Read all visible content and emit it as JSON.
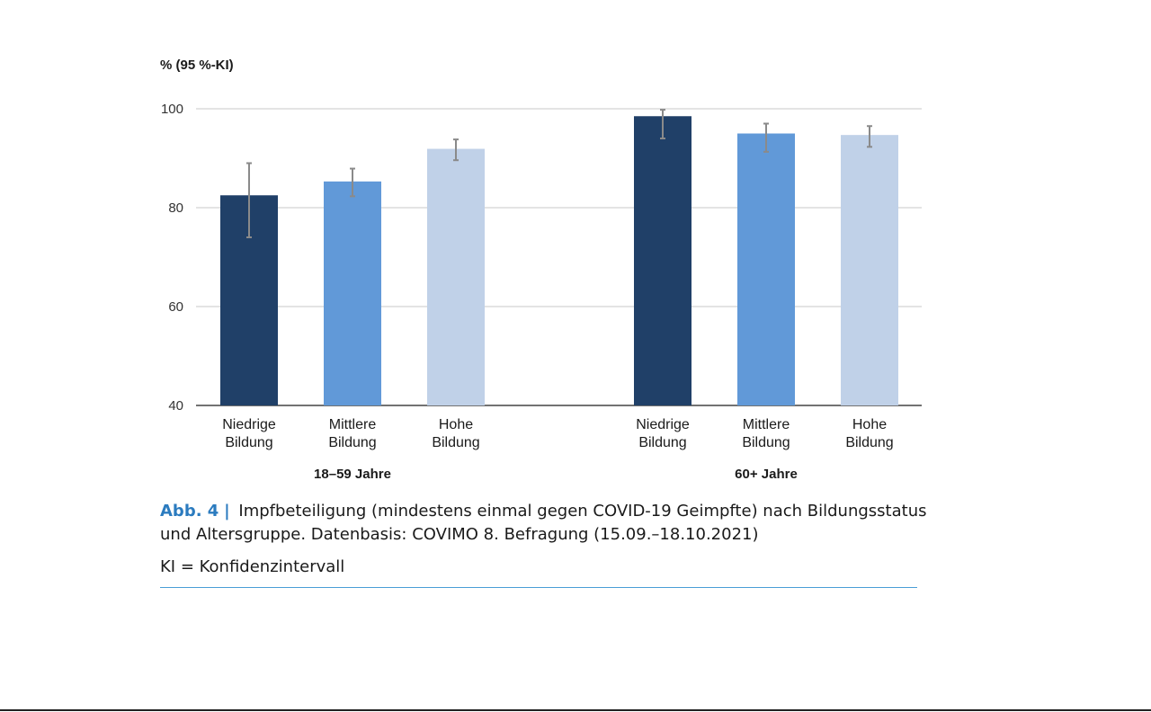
{
  "chart_data": {
    "type": "bar",
    "ylabel": "% (95 %-KI)",
    "ylim": [
      40,
      100
    ],
    "yticks": [
      40,
      60,
      80,
      100
    ],
    "grid": true,
    "groups": [
      {
        "name": "18–59 Jahre",
        "bars": [
          {
            "label": [
              "Niedrige",
              "Bildung"
            ],
            "value": 82.5,
            "ci_low": 74.0,
            "ci_high": 89.0,
            "color": "#204068"
          },
          {
            "label": [
              "Mittlere",
              "Bildung"
            ],
            "value": 85.3,
            "ci_low": 82.3,
            "ci_high": 87.9,
            "color": "#6199d8"
          },
          {
            "label": [
              "Hohe",
              "Bildung"
            ],
            "value": 91.9,
            "ci_low": 89.6,
            "ci_high": 93.8,
            "color": "#c0d1e8"
          }
        ]
      },
      {
        "name": "60+ Jahre",
        "bars": [
          {
            "label": [
              "Niedrige",
              "Bildung"
            ],
            "value": 98.5,
            "ci_low": 94.0,
            "ci_high": 99.8,
            "color": "#204068"
          },
          {
            "label": [
              "Mittlere",
              "Bildung"
            ],
            "value": 95.0,
            "ci_low": 91.3,
            "ci_high": 97.0,
            "color": "#6199d8"
          },
          {
            "label": [
              "Hohe",
              "Bildung"
            ],
            "value": 94.7,
            "ci_low": 92.3,
            "ci_high": 96.5,
            "color": "#c0d1e8"
          }
        ]
      }
    ]
  },
  "caption": {
    "fig_label": "Abb. 4",
    "separator": "|",
    "text": "Impfbeteiligung (mindestens einmal gegen COVID-19 Geimpfte) nach Bildungsstatus und Altersgruppe. Datenbasis: COVIMO 8. Befragung (15.09.–18.10.2021)"
  },
  "note": "KI = Konfidenzintervall",
  "colors": {
    "grid": "#c8c8c8",
    "axis": "#444444",
    "error_bar": "#8a8a8a",
    "rule": "#4a9ed6",
    "caption_accent": "#2b7bbf"
  }
}
